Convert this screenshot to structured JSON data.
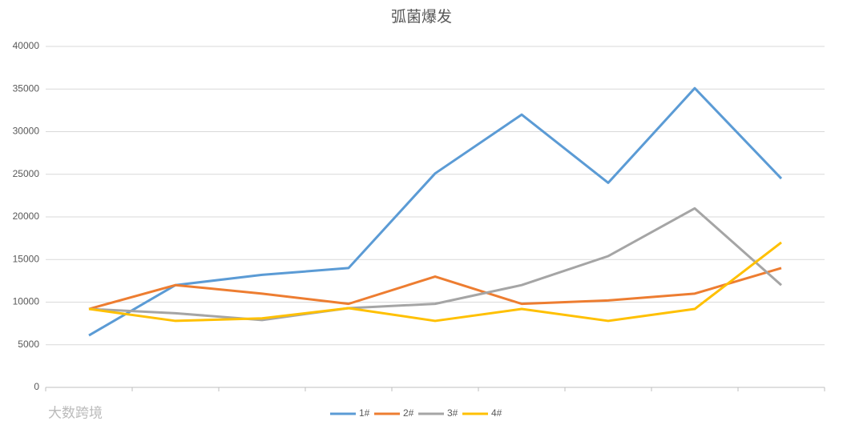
{
  "chart_data": {
    "type": "line",
    "title": "弧菌爆发",
    "categories": [
      null,
      null,
      null,
      null,
      null,
      null,
      null,
      null,
      null
    ],
    "series": [
      {
        "name": "1#",
        "color": "#5b9bd5",
        "values": [
          6100,
          12000,
          13200,
          14000,
          25100,
          32000,
          24000,
          35100,
          24500
        ]
      },
      {
        "name": "2#",
        "color": "#ed7d31",
        "values": [
          9200,
          12000,
          11000,
          9800,
          13000,
          9800,
          10200,
          11000,
          14000
        ]
      },
      {
        "name": "3#",
        "color": "#a5a5a5",
        "values": [
          9200,
          8700,
          7900,
          9300,
          9800,
          12000,
          15400,
          21000,
          12000
        ]
      },
      {
        "name": "4#",
        "color": "#ffc000",
        "values": [
          9200,
          7800,
          8100,
          9300,
          7800,
          9200,
          7800,
          9200,
          17000
        ]
      }
    ],
    "ylim": [
      0,
      40000
    ],
    "yticks": [
      0,
      5000,
      10000,
      15000,
      20000,
      25000,
      30000,
      35000,
      40000
    ],
    "grid": true,
    "legend": "bottom",
    "watermark": "大数跨境"
  }
}
